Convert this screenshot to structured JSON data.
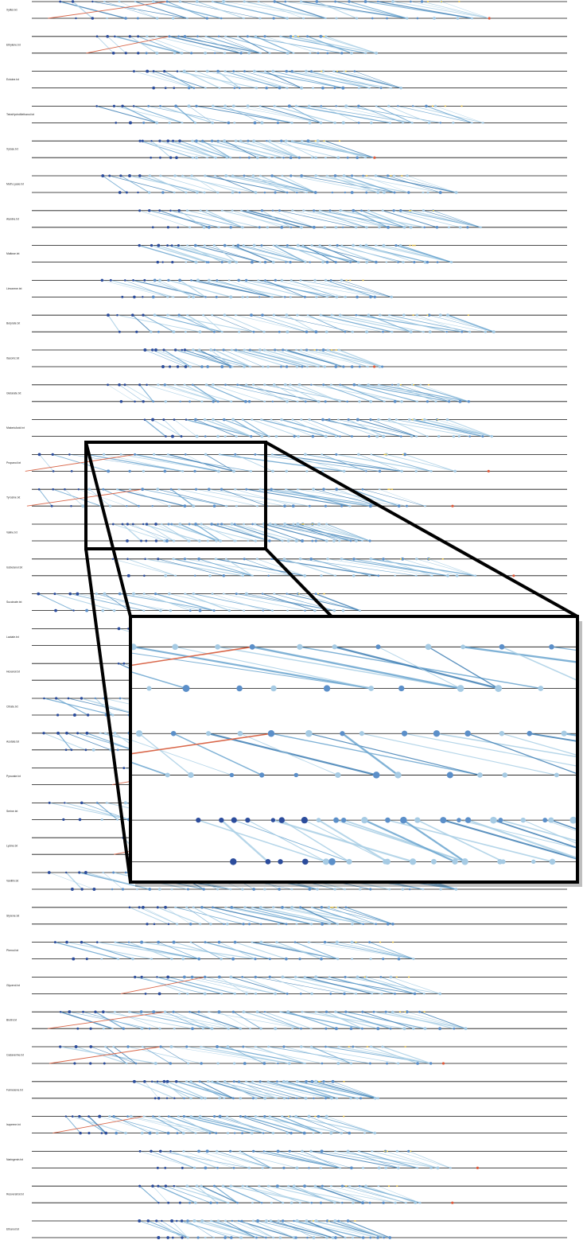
{
  "rows": [
    {
      "label": "Xylitol.txt",
      "seed": 3
    },
    {
      "label": "Ethylene.txt",
      "seed": 7
    },
    {
      "label": "Ectoine.txt",
      "seed": 11
    },
    {
      "label": "TetraHydroMethanol.txt",
      "seed": 13
    },
    {
      "label": "Xylose.txt",
      "seed": 17
    },
    {
      "label": "Meth.Lyase.txt",
      "seed": 19
    },
    {
      "label": "Alanine.txt",
      "seed": 23
    },
    {
      "label": "Maltose.txt",
      "seed": 29
    },
    {
      "label": "Limonene.txt",
      "seed": 31
    },
    {
      "label": "Butyrate.txt",
      "seed": 37
    },
    {
      "label": "Itaconic.txt",
      "seed": 41
    },
    {
      "label": "Glutarate.txt",
      "seed": 43
    },
    {
      "label": "MalonicAcid.txt",
      "seed": 47
    },
    {
      "label": "Propanol.txt",
      "seed": 53
    },
    {
      "label": "Tyrosine.txt",
      "seed": 59
    },
    {
      "label": "Valine.txt",
      "seed": 61
    },
    {
      "label": "Isobutanol.txt",
      "seed": 67
    },
    {
      "label": "Succinate.txt",
      "seed": 71
    },
    {
      "label": "Lactate.txt",
      "seed": 73
    },
    {
      "label": "Hexanol.txt",
      "seed": 79
    },
    {
      "label": "Citrate.txt",
      "seed": 83
    },
    {
      "label": "Acetate.txt",
      "seed": 89
    },
    {
      "label": "Pyruvate.txt",
      "seed": 97
    },
    {
      "label": "Serine.txt",
      "seed": 101
    },
    {
      "label": "Lysine.txt",
      "seed": 103
    },
    {
      "label": "Vanillin.txt",
      "seed": 107
    },
    {
      "label": "Styrene.txt",
      "seed": 109
    },
    {
      "label": "Phenol.txt",
      "seed": 113
    },
    {
      "label": "Glycerol.txt",
      "seed": 127
    },
    {
      "label": "Biotin.txt",
      "seed": 131
    },
    {
      "label": "Cadaverine.txt",
      "seed": 137
    },
    {
      "label": "Farnesene.txt",
      "seed": 139
    },
    {
      "label": "Isoprene.txt",
      "seed": 149
    },
    {
      "label": "Naringenin.txt",
      "seed": 151
    },
    {
      "label": "Resveratrol.txt",
      "seed": 157
    },
    {
      "label": "Ethanol.txt",
      "seed": 163
    }
  ],
  "zoom": {
    "source_rows": [
      13,
      14,
      15
    ]
  },
  "colors": {
    "line_light": "#a9cfe5",
    "line_mid": "#6aa5cf",
    "line_dark": "#3f7fb4",
    "node_dark": "#2b4c9c",
    "node_mid": "#5b8fc9",
    "node_light": "#a6cbe4",
    "warm_line": "#d9674a",
    "warm_node": "#e05a3b",
    "yellow_mark": "#e9c44a"
  }
}
